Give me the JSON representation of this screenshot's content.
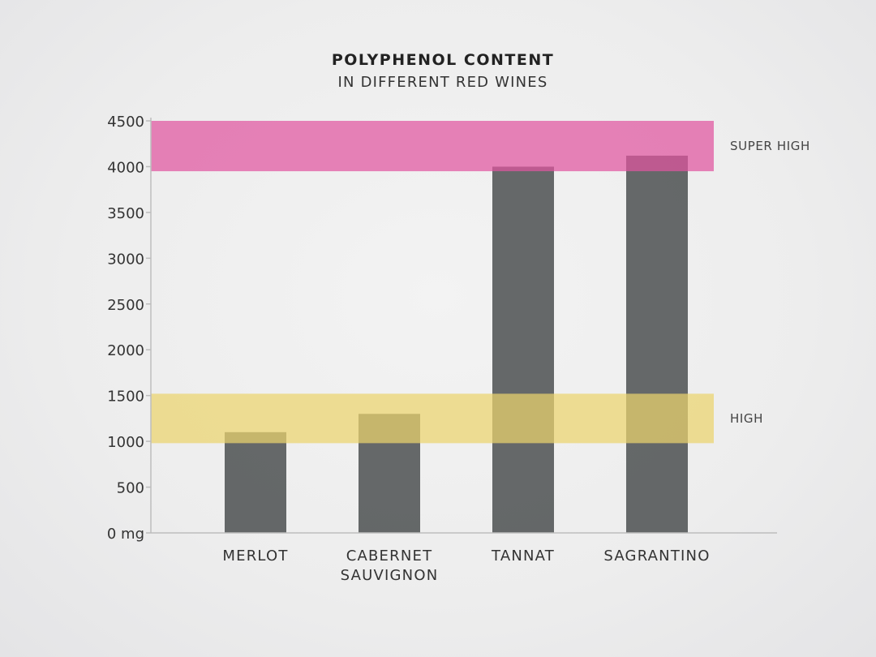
{
  "chart_data": {
    "type": "bar",
    "title": "POLYPHENOL CONTENT",
    "subtitle": "IN DIFFERENT RED WINES",
    "categories": [
      [
        "MERLOT"
      ],
      [
        "CABERNET",
        "SAUVIGNON"
      ],
      [
        "TANNAT"
      ],
      [
        "SAGRANTINO"
      ]
    ],
    "values": [
      1100,
      1300,
      4000,
      4120
    ],
    "ylim": [
      0,
      4500
    ],
    "yticks": [
      {
        "value": 4500,
        "label": "4500"
      },
      {
        "value": 4000,
        "label": "4000"
      },
      {
        "value": 3500,
        "label": "3500"
      },
      {
        "value": 3000,
        "label": "3000"
      },
      {
        "value": 2500,
        "label": "2500"
      },
      {
        "value": 2000,
        "label": "2000"
      },
      {
        "value": 1500,
        "label": "1500"
      },
      {
        "value": 1000,
        "label": "1000"
      },
      {
        "value": 500,
        "label": "500"
      },
      {
        "value": 0,
        "label": "0 mg"
      }
    ],
    "bands": [
      {
        "label": "SUPER HIGH",
        "from": 3950,
        "to": 4500,
        "color": "#e0559f"
      },
      {
        "label": "HIGH",
        "from": 980,
        "to": 1520,
        "color": "#ecd46e"
      }
    ],
    "bar_color": "#3d4142",
    "grid": false
  }
}
